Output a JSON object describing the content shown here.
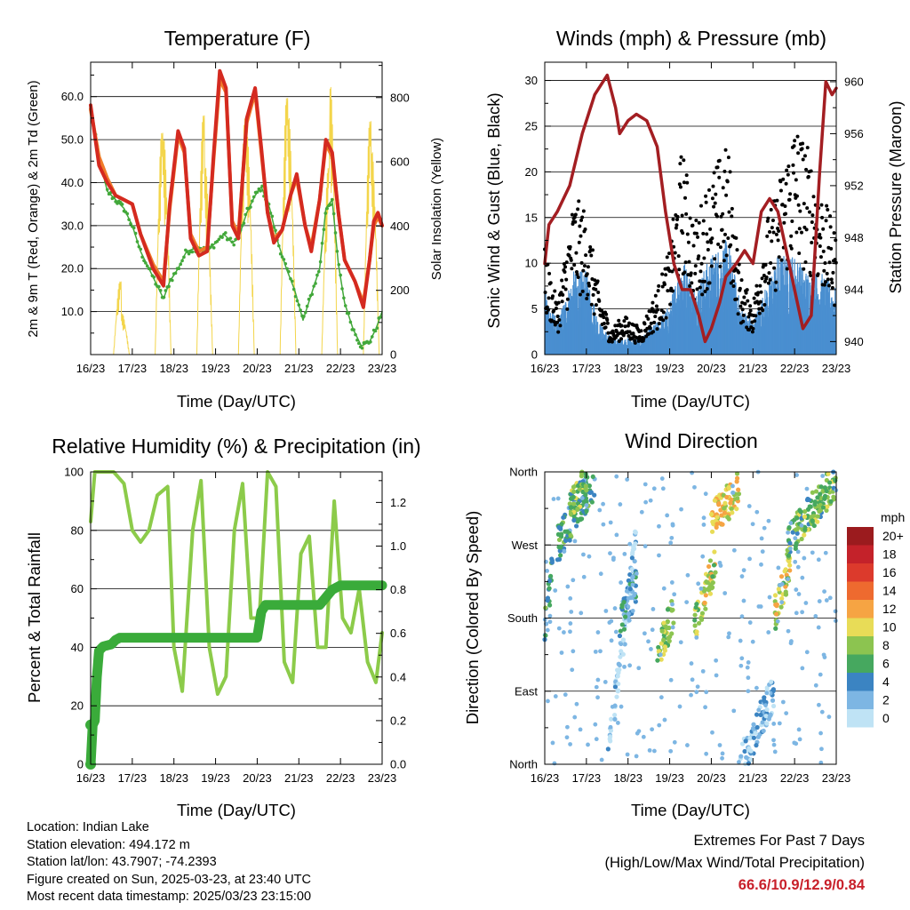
{
  "panels": {
    "temperature": {
      "title": "Temperature (F)",
      "ylabel_left": "2m & 9m T (Red, Orange) & 2m Td (Green)",
      "ylabel_right": "Solar Insolation (Yellow)",
      "xlabel": "Time (Day/UTC)",
      "left_ticks": [
        "10.0",
        "20.0",
        "30.0",
        "40.0",
        "50.0",
        "60.0"
      ],
      "right_ticks": [
        "0",
        "200",
        "400",
        "600",
        "800"
      ]
    },
    "winds": {
      "title": "Winds (mph) & Pressure (mb)",
      "ylabel_left": "Sonic Wind & Gust (Blue, Black)",
      "ylabel_right": "Station Pressure (Maroon)",
      "xlabel": "Time (Day/UTC)",
      "left_ticks": [
        "0",
        "5",
        "10",
        "15",
        "20",
        "25",
        "30"
      ],
      "right_ticks": [
        "940",
        "944",
        "948",
        "952",
        "956",
        "960"
      ]
    },
    "humidity": {
      "title": "Relative Humidity (%) & Precipitation (in)",
      "ylabel_left": "Percent & Total Rainfall",
      "xlabel": "Time (Day/UTC)",
      "left_ticks": [
        "0",
        "20",
        "40",
        "60",
        "80",
        "100"
      ],
      "right_ticks": [
        "0.0",
        "0.2",
        "0.4",
        "0.6",
        "0.8",
        "1.0",
        "1.2"
      ]
    },
    "direction": {
      "title": "Wind Direction",
      "ylabel_left": "Direction (Colored By Speed)",
      "xlabel": "Time (Day/UTC)",
      "left_ticks": [
        "North",
        "East",
        "South",
        "West",
        "North"
      ],
      "legend_title": "mph",
      "legend_labels": [
        "20+",
        "18",
        "16",
        "14",
        "12",
        "10",
        "8",
        "6",
        "4",
        "2",
        "0"
      ],
      "legend_colors": [
        "#9b1b1e",
        "#c4222a",
        "#dc3a2c",
        "#ee6a2f",
        "#f6a443",
        "#e8dc57",
        "#8cc450",
        "#46a85f",
        "#3b84c2",
        "#7db6e3",
        "#bfe3f5"
      ]
    }
  },
  "x_ticks": [
    "16/23",
    "17/23",
    "18/23",
    "19/23",
    "20/23",
    "21/23",
    "22/23",
    "23/23"
  ],
  "info": {
    "location": "Location: Indian Lake",
    "elevation": "Station elevation: 494.172 m",
    "latlon": "Station lat/lon: 43.7907; -74.2393",
    "created": "Figure created on Sun, 2025-03-23, at 23:40 UTC",
    "recent": "Most recent data timestamp: 2025/03/23 23:15:00"
  },
  "extremes": {
    "line1": "Extremes For Past 7 Days",
    "line2": "(High/Low/Max Wind/Total Precipitation)",
    "values": "66.6/10.9/12.9/0.84"
  },
  "colors": {
    "temp2m": "#d42a20",
    "temp9m": "#f07c2a",
    "dewpoint": "#42a83a",
    "solar": "#f3d54b",
    "wind": "#4a8fd0",
    "gust": "#000000",
    "pressure": "#a31e22",
    "rh": "#8ccb4a",
    "precip": "#3aab3a"
  },
  "chart_data": [
    {
      "type": "line",
      "title": "Temperature (F)",
      "xlabel": "Time (Day/UTC)",
      "ylabel": "2m & 9m T (Red, Orange) & 2m Td (Green)",
      "y2label": "Solar Insolation (Yellow)",
      "x_unit": "days since 16/23 UTC",
      "xlim": [
        0,
        7
      ],
      "ylim": [
        0,
        68
      ],
      "y2lim": [
        0,
        910
      ],
      "series": [
        {
          "name": "2m T",
          "x": [
            0,
            0.2,
            0.4,
            0.6,
            0.8,
            1.0,
            1.2,
            1.5,
            1.75,
            1.9,
            2.1,
            2.25,
            2.4,
            2.6,
            2.8,
            2.95,
            3.1,
            3.25,
            3.4,
            3.55,
            3.75,
            3.95,
            4.1,
            4.25,
            4.4,
            4.6,
            4.8,
            4.95,
            5.15,
            5.3,
            5.5,
            5.65,
            5.8,
            5.95,
            6.1,
            6.35,
            6.55,
            6.7,
            6.8,
            6.9,
            7.0
          ],
          "values": [
            58,
            44,
            40,
            37,
            36,
            35,
            28,
            20,
            16,
            35,
            52,
            48,
            27,
            23,
            24,
            46,
            66,
            62,
            30,
            27,
            55,
            62,
            48,
            33,
            26,
            29,
            37,
            42,
            30,
            24,
            36,
            50,
            47,
            33,
            22,
            17,
            11,
            22,
            31,
            33,
            30
          ]
        },
        {
          "name": "9m T",
          "x": [
            0,
            0.2,
            0.4,
            0.6,
            0.8,
            1.0,
            1.2,
            1.5,
            1.75,
            1.9,
            2.1,
            2.25,
            2.4,
            2.6,
            2.8,
            2.95,
            3.1,
            3.25,
            3.4,
            3.55,
            3.75,
            3.95,
            4.1,
            4.25,
            4.4,
            4.6,
            4.8,
            4.95,
            5.15,
            5.3,
            5.5,
            5.65,
            5.8,
            5.95,
            6.1,
            6.35,
            6.55,
            6.7,
            6.8,
            6.9,
            7.0
          ],
          "values": [
            57,
            46,
            41,
            37,
            36,
            35,
            28,
            21,
            17,
            34,
            51,
            47,
            28,
            24,
            25,
            45,
            64,
            61,
            31,
            28,
            54,
            61,
            47,
            33,
            27,
            29,
            37,
            41,
            30,
            25,
            36,
            49,
            46,
            33,
            22,
            17,
            12,
            22,
            30,
            32,
            30
          ]
        },
        {
          "name": "2m Td",
          "x": [
            0,
            0.2,
            0.4,
            0.6,
            0.8,
            1.0,
            1.2,
            1.5,
            1.75,
            1.9,
            2.1,
            2.3,
            2.6,
            2.8,
            3.0,
            3.2,
            3.4,
            3.55,
            3.75,
            3.95,
            4.1,
            4.3,
            4.5,
            4.7,
            4.9,
            5.1,
            5.3,
            5.5,
            5.65,
            5.8,
            5.95,
            6.1,
            6.3,
            6.5,
            6.7,
            6.85,
            7.0
          ],
          "values": [
            57,
            46,
            38,
            36,
            34,
            30,
            24,
            18,
            13,
            17,
            20,
            24,
            25,
            24,
            26,
            28,
            26,
            27,
            33,
            37,
            39,
            34,
            26,
            20,
            15,
            8,
            14,
            20,
            34,
            36,
            21,
            12,
            6,
            2,
            3,
            6,
            10
          ]
        },
        {
          "name": "Solar",
          "axis": "right",
          "x": [
            0.55,
            0.68,
            0.8,
            0.93,
            1.55,
            1.68,
            1.8,
            1.93,
            2.55,
            2.7,
            2.82,
            2.93,
            3.55,
            3.68,
            3.8,
            3.93,
            4.55,
            4.68,
            4.8,
            4.93,
            5.55,
            5.68,
            5.8,
            5.93,
            6.55,
            6.68,
            6.8,
            6.93
          ],
          "values": [
            0,
            250,
            130,
            0,
            0,
            760,
            690,
            0,
            0,
            820,
            600,
            0,
            0,
            810,
            700,
            0,
            0,
            880,
            760,
            0,
            0,
            640,
            860,
            0,
            0,
            800,
            650,
            0
          ]
        }
      ]
    },
    {
      "type": "line",
      "title": "Winds (mph) & Pressure (mb)",
      "xlabel": "Time (Day/UTC)",
      "ylabel": "Sonic Wind & Gust (Blue, Black)",
      "y2label": "Station Pressure (Maroon)",
      "x_unit": "days since 16/23 UTC",
      "xlim": [
        0,
        7
      ],
      "ylim": [
        0,
        32
      ],
      "y2lim": [
        939,
        961.5
      ],
      "series": [
        {
          "name": "Pressure",
          "axis": "right",
          "x": [
            0,
            0.1,
            0.3,
            0.6,
            0.9,
            1.2,
            1.5,
            1.7,
            1.8,
            2.0,
            2.2,
            2.45,
            2.7,
            2.9,
            3.1,
            3.3,
            3.5,
            3.7,
            3.85,
            4.0,
            4.2,
            4.35,
            4.6,
            4.8,
            5.0,
            5.2,
            5.4,
            5.6,
            5.8,
            6.0,
            6.2,
            6.4,
            6.6,
            6.75,
            6.9,
            7.0
          ],
          "values": [
            946,
            949,
            950,
            952,
            956,
            959,
            960.5,
            958,
            956,
            957,
            957.5,
            957,
            955,
            950,
            946,
            944,
            944,
            942,
            940,
            941,
            943,
            945,
            946,
            947,
            946,
            950,
            951,
            950,
            947,
            944,
            941,
            942,
            953,
            960,
            959,
            959.5
          ]
        },
        {
          "name": "Gust (typical)",
          "x": [
            0,
            0.3,
            0.7,
            1.0,
            1.3,
            1.6,
            1.9,
            2.3,
            2.7,
            3.0,
            3.3,
            3.6,
            4.0,
            4.4,
            4.7,
            5.0,
            5.3,
            5.6,
            6.0,
            6.3,
            6.6,
            7.0
          ],
          "values": [
            8,
            4,
            12,
            11,
            5,
            2,
            3,
            2,
            5,
            8,
            16,
            10,
            14,
            16,
            6,
            4,
            10,
            13,
            18,
            16,
            13,
            9
          ]
        },
        {
          "name": "Wind (typical)",
          "x": [
            0,
            0.3,
            0.7,
            1.0,
            1.3,
            1.6,
            1.9,
            2.3,
            2.7,
            3.0,
            3.3,
            3.6,
            4.0,
            4.4,
            4.7,
            5.0,
            5.3,
            5.6,
            6.0,
            6.3,
            6.6,
            7.0
          ],
          "values": [
            4,
            2,
            5,
            5,
            2,
            1,
            1,
            1,
            2,
            3,
            6,
            4,
            6,
            7,
            3,
            2,
            4,
            6,
            6,
            5,
            5,
            4
          ]
        }
      ]
    },
    {
      "type": "line",
      "title": "Relative Humidity (%) & Precipitation (in)",
      "xlabel": "Time (Day/UTC)",
      "ylabel": "Percent & Total Rainfall",
      "x_unit": "days since 16/23 UTC",
      "xlim": [
        0,
        7
      ],
      "ylim": [
        0,
        100
      ],
      "y2lim": [
        0,
        1.34
      ],
      "series": [
        {
          "name": "RH",
          "x": [
            0,
            0.1,
            0.3,
            0.55,
            0.8,
            1.0,
            1.2,
            1.4,
            1.6,
            1.85,
            2.0,
            2.2,
            2.45,
            2.65,
            2.85,
            3.05,
            3.25,
            3.45,
            3.65,
            3.85,
            4.05,
            4.25,
            4.45,
            4.65,
            4.85,
            5.05,
            5.25,
            5.45,
            5.65,
            5.85,
            6.05,
            6.25,
            6.45,
            6.65,
            6.85,
            7.0
          ],
          "values": [
            83,
            100,
            100,
            100,
            96,
            80,
            76,
            80,
            92,
            95,
            40,
            25,
            80,
            97,
            40,
            24,
            30,
            80,
            96,
            50,
            50,
            100,
            95,
            35,
            28,
            72,
            78,
            40,
            40,
            90,
            50,
            45,
            60,
            35,
            28,
            45
          ]
        },
        {
          "name": "Precip",
          "axis": "right",
          "x": [
            0,
            0.05,
            0.1,
            0.15,
            0.2,
            0.3,
            0.5,
            0.6,
            0.7,
            1.0,
            2.0,
            3.0,
            4.0,
            4.1,
            4.2,
            5.0,
            5.5,
            5.8,
            6.0,
            6.5,
            7.0
          ],
          "values": [
            0,
            0.18,
            0.2,
            0.4,
            0.52,
            0.54,
            0.55,
            0.57,
            0.58,
            0.58,
            0.58,
            0.58,
            0.58,
            0.7,
            0.73,
            0.73,
            0.73,
            0.8,
            0.82,
            0.82,
            0.82
          ]
        }
      ]
    },
    {
      "type": "scatter",
      "title": "Wind Direction",
      "xlabel": "Time (Day/UTC)",
      "ylabel": "Direction (Colored By Speed)",
      "x_unit": "days since 16/23 UTC",
      "xlim": [
        0,
        7
      ],
      "ylim": [
        0,
        360
      ],
      "y_ticks": [
        "North",
        "East",
        "South",
        "West",
        "North"
      ],
      "clusters": [
        {
          "x": [
            0.0,
            0.2
          ],
          "dir": [
            170,
            250
          ],
          "speed": 5
        },
        {
          "x": [
            0.3,
            1.2
          ],
          "dir": [
            270,
            350
          ],
          "speed": 5
        },
        {
          "x": [
            0.6,
            1.0
          ],
          "dir": [
            310,
            355
          ],
          "speed": 7
        },
        {
          "x": [
            1.5,
            2.2
          ],
          "dir": [
            0,
            280
          ],
          "speed": 1
        },
        {
          "x": [
            1.8,
            2.2
          ],
          "dir": [
            170,
            220
          ],
          "speed": 4
        },
        {
          "x": [
            2.7,
            3.1
          ],
          "dir": [
            130,
            190
          ],
          "speed": 8
        },
        {
          "x": [
            3.6,
            4.1
          ],
          "dir": [
            170,
            250
          ],
          "speed": 9
        },
        {
          "x": [
            4.0,
            4.7
          ],
          "dir": [
            300,
            340
          ],
          "speed": 10
        },
        {
          "x": [
            5.5,
            5.9
          ],
          "dir": [
            180,
            250
          ],
          "speed": 9
        },
        {
          "x": [
            5.8,
            7.0
          ],
          "dir": [
            270,
            350
          ],
          "speed": 7
        },
        {
          "x": [
            4.7,
            5.5
          ],
          "dir": [
            0,
            90
          ],
          "speed": 2
        }
      ]
    }
  ]
}
